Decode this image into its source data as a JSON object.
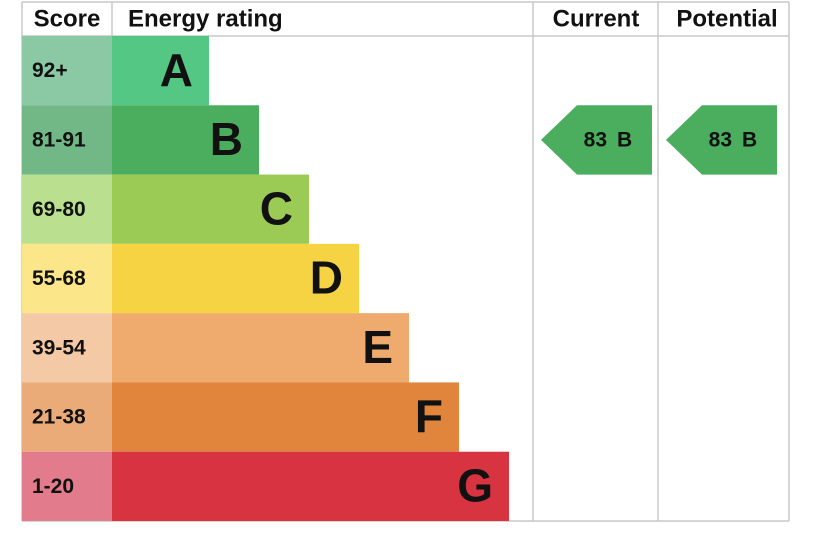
{
  "header": {
    "score": "Score",
    "rating": "Energy rating",
    "current": "Current",
    "potential": "Potential"
  },
  "bands": [
    {
      "range": "92+",
      "letter": "A",
      "color": "#55c785",
      "score_color": "#8bc9a5"
    },
    {
      "range": "81-91",
      "letter": "B",
      "color": "#4aae5e",
      "score_color": "#72b886"
    },
    {
      "range": "69-80",
      "letter": "C",
      "color": "#9bcb55",
      "score_color": "#badf8f"
    },
    {
      "range": "55-68",
      "letter": "D",
      "color": "#f6d343",
      "score_color": "#fbe68a"
    },
    {
      "range": "39-54",
      "letter": "E",
      "color": "#efaa6d",
      "score_color": "#f4c9a5"
    },
    {
      "range": "21-38",
      "letter": "F",
      "color": "#e1843c",
      "score_color": "#eaab78"
    },
    {
      "range": "1-20",
      "letter": "G",
      "color": "#d73341",
      "score_color": "#e27b8b"
    }
  ],
  "current": {
    "score": 83,
    "rating": "B"
  },
  "potential": {
    "score": 83,
    "rating": "B"
  }
}
